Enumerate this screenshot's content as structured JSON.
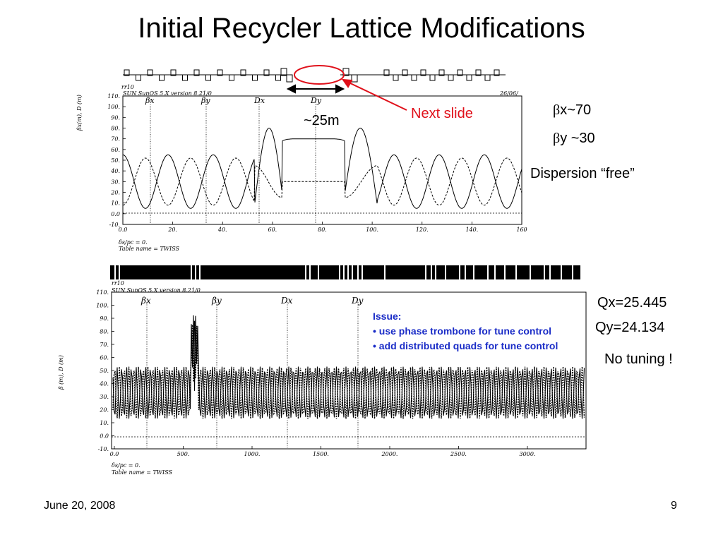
{
  "slide": {
    "title": "Initial Recycler Lattice Modifications",
    "footer_date": "June 20, 2008",
    "page_number": "9"
  },
  "top_plot": {
    "header_left": "SUN SunOS 5.X version 8.21/0",
    "header_right": "26/06/",
    "label_top_left": "rr10",
    "ylabel": "βx(m), D (m)",
    "footer_line1": "δs/pc = 0.",
    "footer_line2": "Table name = TWISS",
    "markers": [
      "βx",
      "βy",
      "Dx",
      "Dy"
    ],
    "yticks": [
      "110.",
      "100.",
      "90.",
      "80.",
      "70.",
      "60.",
      "50.",
      "40.",
      "30.",
      "20.",
      "10.",
      "0.0",
      "-10."
    ],
    "xticks": [
      "0.0",
      "20.",
      "40.",
      "60.",
      "80.",
      "100.",
      "120.",
      "140.",
      "160"
    ],
    "distance_label": "~25m",
    "next_slide_label": "Next slide"
  },
  "top_notes": {
    "bx": "x~70",
    "by": "y ~30",
    "beta_symbol": "β",
    "dispersion": "Dispersion “free”"
  },
  "bottom_plot": {
    "header_left": "SUN SunOS 5.X version 8.21/0",
    "label_top_left": "rr10",
    "ylabel": "β (m), D (m)",
    "footer_line1": "δs/pc = 0.",
    "footer_line2": "Table name = TWISS",
    "markers": [
      "βx",
      "βy",
      "Dx",
      "Dy"
    ],
    "yticks": [
      "110.",
      "100.",
      "90.",
      "80.",
      "70.",
      "60.",
      "50.",
      "40.",
      "30.",
      "20.",
      "10.",
      "0.0",
      "-10."
    ],
    "xticks": [
      "0.0",
      "500.",
      "1000.",
      "1500.",
      "2000.",
      "2500.",
      "3000."
    ]
  },
  "bottom_notes": {
    "qx": "Qx=25.445",
    "qy": "Qy=24.134",
    "no_tuning": "No tuning !"
  },
  "issue_box": {
    "heading": "Issue:",
    "items": [
      "• use phase trombone for tune control",
      "• add distributed quads for tune control"
    ]
  },
  "colors": {
    "accent_red": "#e0101a",
    "issue_blue": "#1a2cc7"
  }
}
